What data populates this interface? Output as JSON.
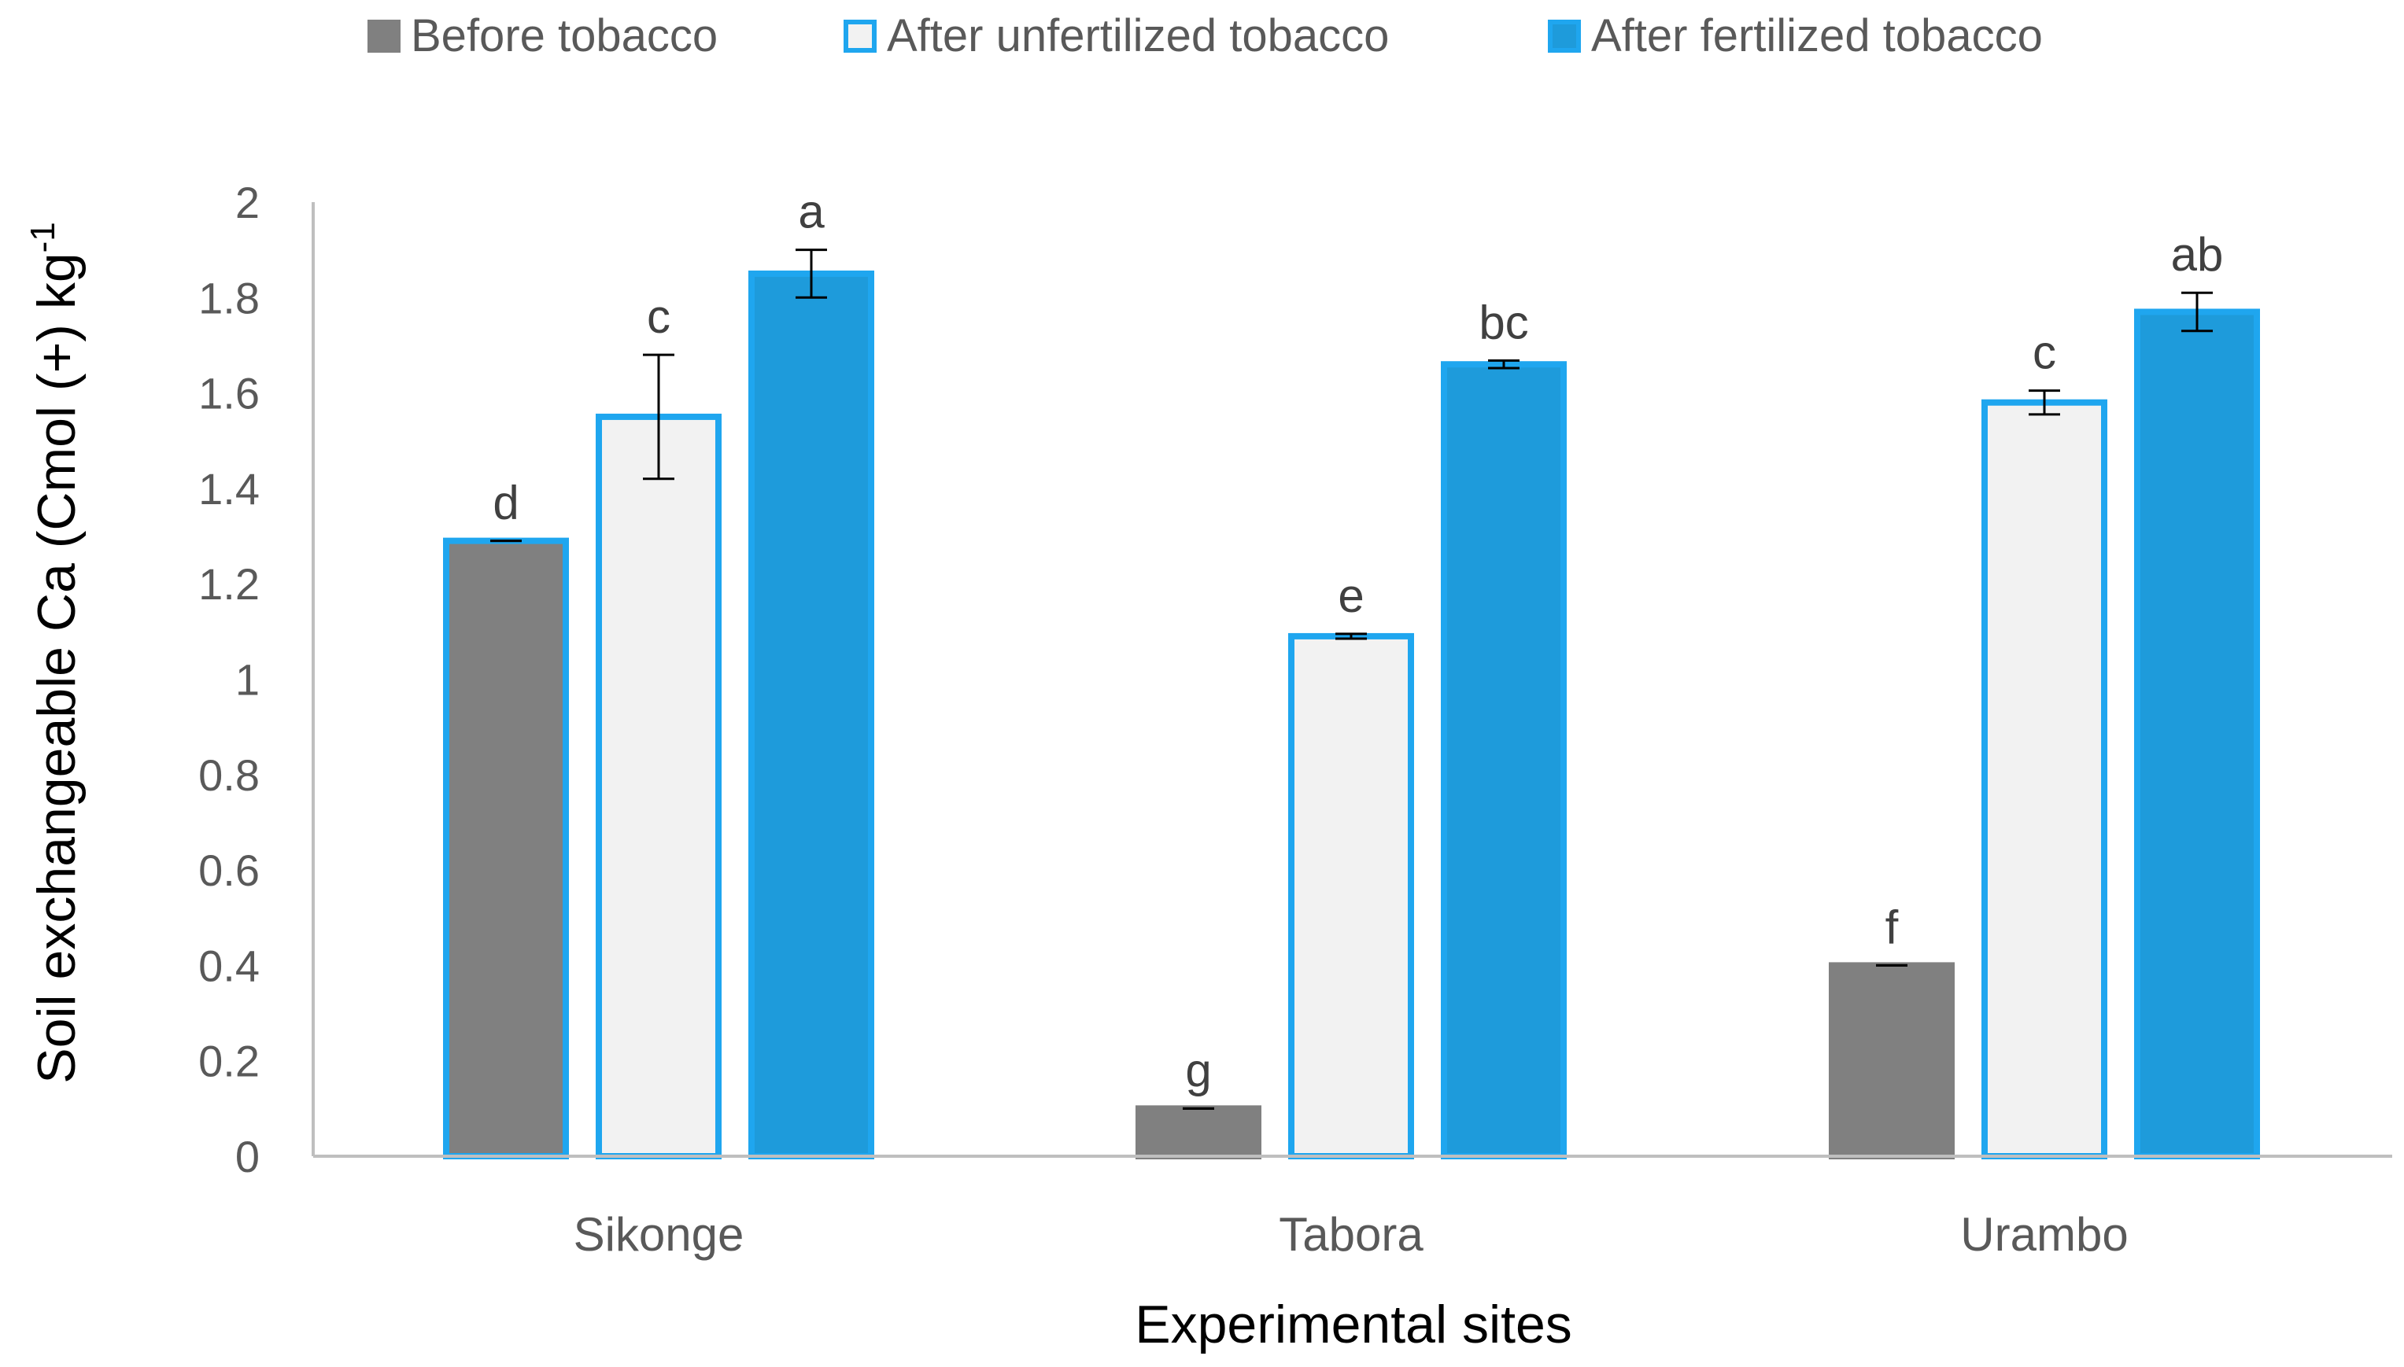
{
  "chart_data": {
    "type": "bar",
    "title": "",
    "xlabel": "Experimental sites",
    "ylabel": {
      "main": "Soil exchangeable Ca (Cmol (+) kg",
      "superscript": "-1"
    },
    "ylim": [
      0,
      2
    ],
    "yticks": [
      0,
      0.2,
      0.4,
      0.6,
      0.8,
      1,
      1.2,
      1.4,
      1.6,
      1.8,
      2
    ],
    "ytick_labels": [
      "0",
      "0.2",
      "0.4",
      "0.6",
      "0.8",
      "1",
      "1.2",
      "1.4",
      "1.6",
      "1.8",
      "2"
    ],
    "categories": [
      "Sikonge",
      "Tabora",
      "Urambo"
    ],
    "legend_position": "top",
    "series": [
      {
        "name": "Before tobacco",
        "fill": "#808080",
        "stroke": "#808080",
        "values": [
          1.29,
          0.1,
          0.4
        ],
        "errors": [
          0.0,
          0.0,
          0.0
        ],
        "letters": [
          "d",
          "g",
          "f"
        ]
      },
      {
        "name": "After unfertilized tobacco",
        "fill": "#f2f2f2",
        "stroke": "#1fa6ef",
        "values": [
          1.55,
          1.09,
          1.58
        ],
        "errors": [
          0.13,
          0.005,
          0.025
        ],
        "letters": [
          "c",
          "e",
          "c"
        ]
      },
      {
        "name": "After fertilized tobacco",
        "fill": "#1e9bdb",
        "stroke": "#1fa6ef",
        "values": [
          1.85,
          1.66,
          1.77
        ],
        "errors": [
          0.05,
          0.008,
          0.04
        ],
        "letters": [
          "a",
          "bc",
          "ab"
        ]
      }
    ],
    "special_outline": {
      "description": "Sikonge before-tobacco bar drawn with blue outline",
      "series_index": 0,
      "category_index": 0,
      "stroke": "#1fa6ef"
    },
    "colors": {
      "axis": "#bfbfbf",
      "tick_text": "#595959",
      "error_bar": "#000000"
    }
  }
}
